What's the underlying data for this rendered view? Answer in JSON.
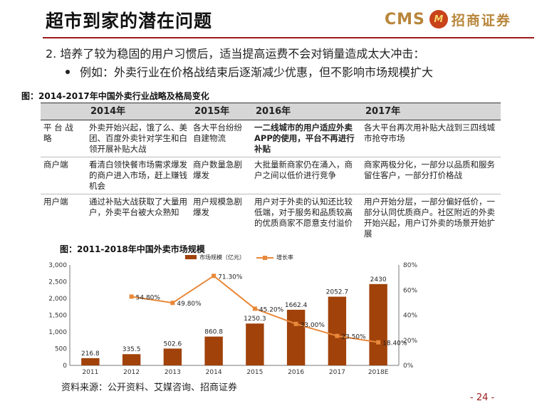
{
  "page": {
    "title": "超市到家的潜在问题",
    "logo_text": "CMS",
    "logo_mark": "M",
    "logo_cn": "招商证券",
    "point": "2.  培养了较为稳固的用户习惯后，适当提高运费不会对销量造成太大冲击：",
    "bullet": "例如：外卖行业在价格战结束后逐渐减少优惠，但不影响市场规模扩大",
    "table_caption": "图：2014-2017年中国外卖行业战略及格局变化",
    "chart_caption": "图：2011-2018年中国外卖市场规模",
    "source": "资料来源：公开资料、艾媒咨询、招商证券",
    "page_number": "- 24 -",
    "accent_color": "#9b1b1b"
  },
  "table": {
    "headers": [
      "",
      "2014年",
      "2015年",
      "2016年",
      "2017年"
    ],
    "rows": [
      {
        "label": "平 台 战 略",
        "cells": [
          "外卖开始兴起，饿了么、美团、百度外卖针对学生和白领开展补贴大战",
          "各大平台纷纷自建物流",
          "一二线城市的用户适应外卖APP的使用，平台不再进行补贴",
          "各大平台再次用补贴大战到三四线城市抢夺市场"
        ]
      },
      {
        "label": "商户端",
        "cells": [
          "看清白领快餐市场需求爆发的商户进入市场，赶上赚钱机会",
          "商户数量急剧爆发",
          "大批量新商家仍在涌入，商户之间以低价进行竞争",
          "商家两极分化，一部分以品质和服务留住客户，一部分打价格战"
        ]
      },
      {
        "label": "用户端",
        "cells": [
          "通过补贴大战获取了大量用户，外卖平台被大众熟知",
          "用户规模急剧爆发",
          "用户对于外卖的认知还比较低端，对于服务和品质较高的优质商家不愿意支付溢价",
          "用户开始分层，一部分偏好低价，一部分认同优质商户。社区附近的外卖开始兴起，用户订外卖的场景开始扩展"
        ]
      }
    ]
  },
  "chart_data": {
    "type": "bar",
    "categories": [
      "2011",
      "2012",
      "2013",
      "2014",
      "2015",
      "2016",
      "2017",
      "2018E"
    ],
    "series": [
      {
        "name": "市场规模（亿元）",
        "type": "bar",
        "axis": "left",
        "color": "#a0420a",
        "values": [
          216.8,
          335.5,
          502.6,
          860.8,
          1250.3,
          1662.4,
          2052.7,
          2430
        ],
        "labels": [
          "216.8",
          "335.5",
          "502.6",
          "860.8",
          "1250.3",
          "1662.4",
          "2052.7",
          "2430"
        ]
      },
      {
        "name": "增长率",
        "type": "line",
        "axis": "right",
        "color": "#e8883a",
        "values": [
          null,
          54.8,
          49.8,
          71.3,
          45.2,
          33.0,
          23.5,
          18.4
        ],
        "labels": [
          "",
          "54.80%",
          "49.80%",
          "71.30%",
          "45.20%",
          "33.00%",
          "23.50%",
          "18.40%"
        ]
      }
    ],
    "ylim_left": [
      0,
      3000
    ],
    "yticks_left": [
      "0",
      "500",
      "1,000",
      "1,500",
      "2,000",
      "2,500",
      "3,000"
    ],
    "ylim_right": [
      0,
      80
    ],
    "yticks_right": [
      "0%",
      "20%",
      "40%",
      "60%",
      "80%"
    ],
    "legend_position": "top"
  }
}
